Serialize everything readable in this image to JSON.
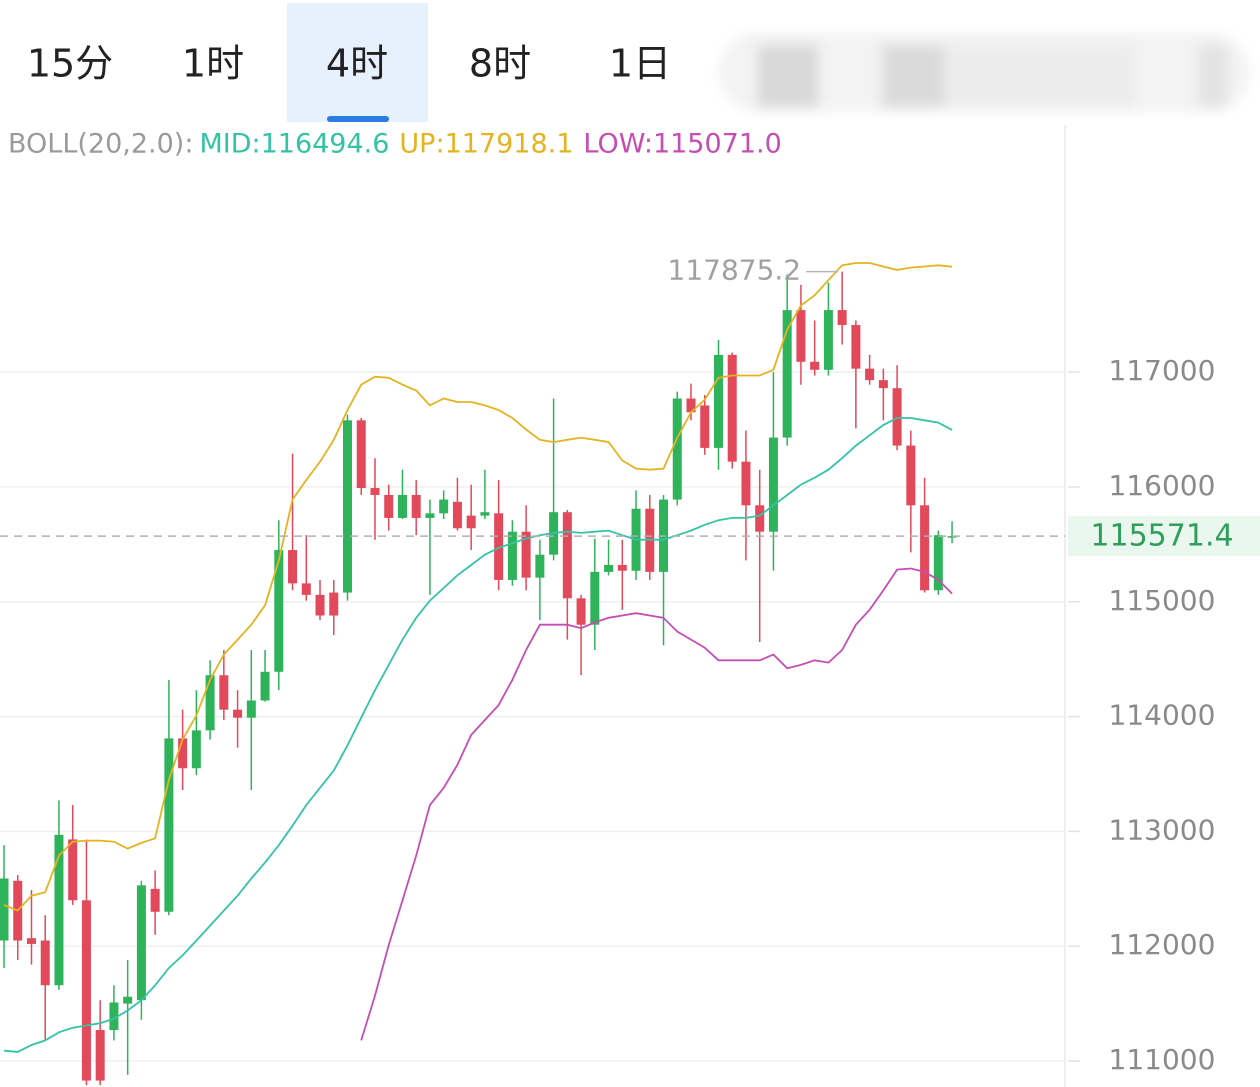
{
  "tabs": [
    "15分",
    "1时",
    "4时",
    "8时",
    "1日"
  ],
  "active_tab": 2,
  "chart_data": {
    "type": "candlestick",
    "indicator_label": "BOLL(20,2.0):",
    "up_color": "#2fb35a",
    "down_color": "#e2495b",
    "open": [
      112050,
      112570,
      112070,
      112050,
      111660,
      112930,
      112400,
      111270,
      111270,
      111500,
      111530,
      112500,
      112300,
      113810,
      113550,
      113880,
      114360,
      114060,
      113990,
      114140,
      114390,
      115450,
      115160,
      115060,
      115080,
      115080,
      116580,
      115990,
      115930,
      115730,
      115930,
      115730,
      115770,
      115870,
      115750,
      115750,
      115770,
      115190,
      115610,
      115210,
      115410,
      115780,
      115030,
      114800,
      115260,
      115320,
      115270,
      115810,
      115260,
      115890,
      116770,
      116710,
      116340,
      117150,
      116220,
      115840,
      115610,
      116430,
      117540,
      117090,
      117020,
      117540,
      117410,
      117030,
      116930,
      116860,
      116360,
      115840,
      115100,
      115560
    ],
    "high": [
      112880,
      112620,
      112490,
      112270,
      113270,
      113230,
      112930,
      111530,
      111660,
      111880,
      112570,
      112660,
      114320,
      114060,
      114230,
      114490,
      114580,
      114230,
      114580,
      114580,
      115710,
      116290,
      115580,
      115190,
      115190,
      116630,
      116600,
      116250,
      116020,
      116150,
      116060,
      115890,
      115970,
      116080,
      116020,
      116150,
      116060,
      115710,
      115840,
      115540,
      116770,
      115800,
      115060,
      115550,
      115540,
      115540,
      115970,
      115930,
      115930,
      116830,
      116900,
      116800,
      117280,
      117170,
      116490,
      116150,
      117000,
      117850,
      117760,
      117450,
      117780,
      117875.2,
      117450,
      117150,
      117030,
      117060,
      116490,
      116080,
      115620,
      115700
    ],
    "low": [
      111810,
      111880,
      111840,
      111180,
      111620,
      112360,
      110790,
      110790,
      111180,
      110880,
      111360,
      112100,
      112270,
      113360,
      113490,
      113800,
      113970,
      113730,
      113360,
      114130,
      114230,
      115100,
      115010,
      114840,
      114710,
      115010,
      115930,
      115540,
      115620,
      115720,
      115580,
      115060,
      115720,
      115620,
      115450,
      115720,
      115100,
      115140,
      115100,
      114840,
      115360,
      114670,
      114360,
      114580,
      115230,
      114930,
      115190,
      115190,
      114620,
      115840,
      116580,
      116280,
      116150,
      116160,
      115360,
      114650,
      115270,
      116360,
      116890,
      116970,
      116970,
      117240,
      116510,
      116890,
      116580,
      116320,
      115430,
      115080,
      115060,
      115510
    ],
    "close": [
      112590,
      112050,
      112020,
      111660,
      112970,
      112400,
      110830,
      110830,
      111510,
      111560,
      112530,
      112300,
      113810,
      113550,
      113880,
      114360,
      114060,
      113990,
      114140,
      114390,
      115450,
      115160,
      115060,
      114880,
      114880,
      116580,
      115990,
      115930,
      115730,
      115930,
      115730,
      115770,
      115890,
      115640,
      115640,
      115780,
      115190,
      115610,
      115210,
      115410,
      115780,
      115030,
      114800,
      115260,
      115320,
      115270,
      115810,
      115260,
      115890,
      116770,
      116650,
      116340,
      117150,
      116220,
      115840,
      115610,
      116430,
      117540,
      117090,
      117020,
      117540,
      117410,
      117030,
      116930,
      116860,
      116360,
      115840,
      115100,
      115580,
      115571.4
    ],
    "series": [
      {
        "label": "MID:116494.6",
        "color": "#35c3a5",
        "values": [
          111090,
          111080,
          111140,
          111180,
          111250,
          111290,
          111310,
          111330,
          111370,
          111440,
          111530,
          111660,
          111810,
          111920,
          112050,
          112180,
          112310,
          112440,
          112590,
          112730,
          112880,
          113050,
          113230,
          113380,
          113530,
          113750,
          113990,
          114230,
          114450,
          114670,
          114860,
          115010,
          115120,
          115230,
          115320,
          115410,
          115470,
          115510,
          115550,
          115580,
          115600,
          115610,
          115600,
          115610,
          115620,
          115580,
          115540,
          115540,
          115540,
          115580,
          115620,
          115670,
          115710,
          115730,
          115730,
          115750,
          115840,
          115930,
          116020,
          116080,
          116150,
          116250,
          116360,
          116450,
          116540,
          116600,
          116600,
          116580,
          116560,
          116494.6
        ]
      },
      {
        "label": "UP:117918.1",
        "color": "#e5b320",
        "values": [
          112360,
          112310,
          112440,
          112470,
          112790,
          112910,
          112920,
          112920,
          112910,
          112850,
          112900,
          112940,
          113450,
          113800,
          114010,
          114320,
          114540,
          114670,
          114800,
          114970,
          115360,
          115890,
          116060,
          116220,
          116410,
          116670,
          116890,
          116960,
          116950,
          116890,
          116840,
          116710,
          116770,
          116740,
          116740,
          116710,
          116670,
          116600,
          116500,
          116410,
          116390,
          116410,
          116430,
          116410,
          116390,
          116230,
          116160,
          116150,
          116160,
          116430,
          116650,
          116760,
          116950,
          116970,
          116970,
          116970,
          117020,
          117370,
          117580,
          117670,
          117800,
          117930,
          117950,
          117950,
          117920,
          117890,
          117910,
          117920,
          117930,
          117918.1
        ]
      },
      {
        "label": "LOW:115071.0",
        "color": "#c54db3",
        "values": [
          null,
          null,
          null,
          null,
          null,
          null,
          null,
          null,
          null,
          null,
          null,
          null,
          null,
          null,
          null,
          null,
          null,
          null,
          null,
          null,
          null,
          null,
          null,
          null,
          null,
          null,
          111180,
          111570,
          112010,
          112400,
          112790,
          113230,
          113380,
          113580,
          113840,
          113970,
          114100,
          114320,
          114580,
          114800,
          114800,
          114800,
          114770,
          114820,
          114860,
          114880,
          114900,
          114880,
          114860,
          114740,
          114670,
          114600,
          114490,
          114490,
          114490,
          114490,
          114540,
          114420,
          114450,
          114490,
          114470,
          114580,
          114800,
          114930,
          115100,
          115280,
          115290,
          115260,
          115190,
          115071.0
        ]
      }
    ],
    "last_price": 115571.4,
    "high_label": 117875.2,
    "ylim": [
      110774,
      119152
    ],
    "yticks": [
      111000,
      112000,
      113000,
      114000,
      115000,
      116000,
      117000
    ],
    "grid": true
  }
}
